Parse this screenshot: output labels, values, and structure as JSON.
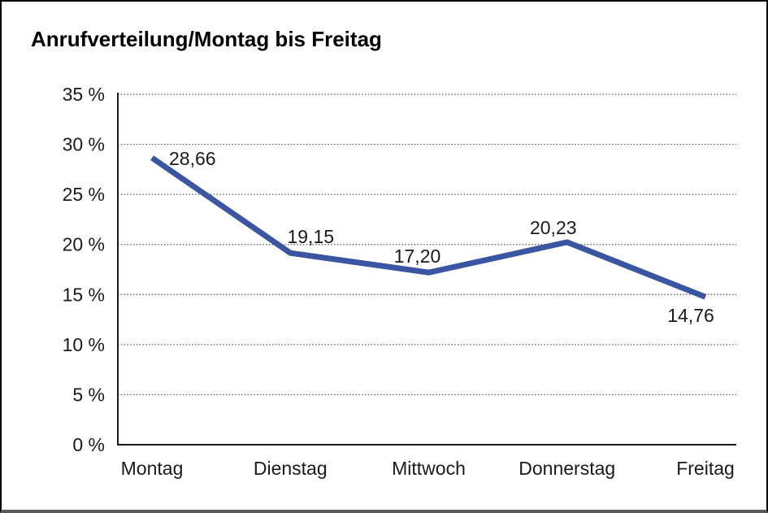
{
  "chart_data": {
    "type": "line",
    "title": "Anrufverteilung/Montag bis Freitag",
    "categories": [
      "Montag",
      "Dienstag",
      "Mittwoch",
      "Donnerstag",
      "Freitag"
    ],
    "series": [
      {
        "name": "Anrufverteilung",
        "values": [
          28.66,
          19.15,
          17.2,
          20.23,
          14.76
        ],
        "point_labels": [
          "28,66",
          "19,15",
          "17,20",
          "20,23",
          "14,76"
        ]
      }
    ],
    "xlabel": "",
    "ylabel": "",
    "unit": "%",
    "ylim": [
      0,
      35
    ],
    "y_tick_step": 5,
    "y_ticks": [
      0,
      5,
      10,
      15,
      20,
      25,
      30,
      35
    ],
    "y_tick_labels": [
      "0 %",
      "5 %",
      "10 %",
      "15 %",
      "20 %",
      "25 %",
      "30 %",
      "35 %"
    ],
    "grid": "horizontal-dotted",
    "legend": "none",
    "colors": {
      "line": "#3A56A2",
      "axis": "#1a1a1a",
      "gridline": "#4a4a4a",
      "text": "#1a1a1a",
      "background": "#ffffff",
      "frame_border": "#000000",
      "frame_bottom": "#5a5a5a"
    }
  }
}
